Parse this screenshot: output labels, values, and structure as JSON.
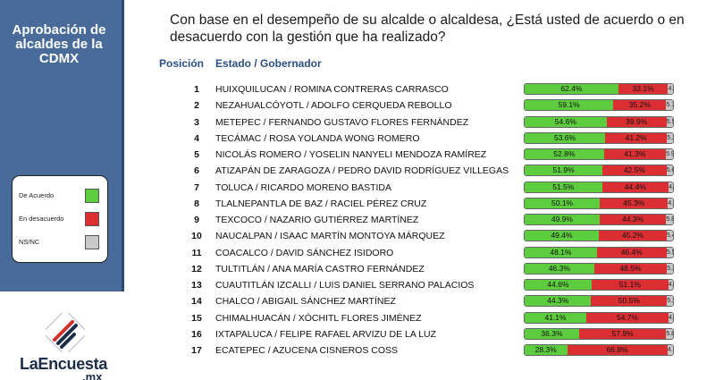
{
  "sidebar": {
    "title": "Aprobación de alcaldes de la CDMX",
    "legend": [
      {
        "label": "De Acuerdo",
        "color": "#5dcc3e"
      },
      {
        "label": "En desacuerdo",
        "color": "#dc2f34"
      },
      {
        "label": "NS/NC",
        "color": "#c8c8c8"
      }
    ]
  },
  "logo": {
    "brand": "LaEncuesta",
    "suffix": ".mx",
    "icon": "stripes-logo-icon"
  },
  "question": "Con base en el desempeño de su alcalde o alcaldesa, ¿Está usted de acuerdo o en desacuerdo con la gestión que ha realizado?",
  "headers": {
    "position": "Posición",
    "name": "Estado / Gobernador"
  },
  "chart_data": {
    "type": "bar",
    "stacked": true,
    "orientation": "horizontal",
    "series_colors": {
      "agree": "#5dcc3e",
      "disagree": "#dc2f34",
      "nsnc": "#c8c8c8"
    },
    "rows": [
      {
        "pos": "1",
        "name": "HUIXQUILUCAN / ROMINA CONTRERAS CARRASCO",
        "agree": 62.4,
        "disagree": 33.1,
        "nsnc": 4.5
      },
      {
        "pos": "2",
        "name": "NEZAHUALCÓYOTL / ADOLFO CERQUEDA REBOLLO",
        "agree": 59.1,
        "disagree": 35.2,
        "nsnc": 5.7
      },
      {
        "pos": "3",
        "name": "METEPEC / FERNANDO GUSTAVO FLORES FERNÁNDEZ",
        "agree": 54.6,
        "disagree": 39.9,
        "nsnc": 5.5
      },
      {
        "pos": "4",
        "name": "TECÁMAC / ROSA YOLANDA WONG ROMERO",
        "agree": 53.6,
        "disagree": 41.2,
        "nsnc": 5.2
      },
      {
        "pos": "5",
        "name": "NICOLÁS ROMERO / YOSELIN NANYELI MENDOZA RAMÍREZ",
        "agree": 52.8,
        "disagree": 41.3,
        "nsnc": 5.9
      },
      {
        "pos": "6",
        "name": "ATIZAPÁN DE ZARAGOZA / PEDRO DAVID RODRÍGUEZ VILLEGAS",
        "agree": 51.9,
        "disagree": 42.5,
        "nsnc": 5.6
      },
      {
        "pos": "7",
        "name": "TOLUCA / RICARDO MORENO BASTIDA",
        "agree": 51.5,
        "disagree": 44.4,
        "nsnc": 4.1
      },
      {
        "pos": "8",
        "name": "TLALNEPANTLA DE BAZ / RACIEL PÉREZ CRUZ",
        "agree": 50.1,
        "disagree": 45.3,
        "nsnc": 4.6
      },
      {
        "pos": "9",
        "name": "TEXCOCO / NAZARIO GUTIÉRREZ MARTÍNEZ",
        "agree": 49.9,
        "disagree": 44.3,
        "nsnc": 5.8
      },
      {
        "pos": "10",
        "name": "NAUCALPAN / ISAAC MARTÍN MONTOYA MÁRQUEZ",
        "agree": 49.4,
        "disagree": 45.2,
        "nsnc": 5.4
      },
      {
        "pos": "11",
        "name": "COACALCO / DAVID SÁNCHEZ ISIDORO",
        "agree": 48.1,
        "disagree": 46.4,
        "nsnc": 5.5
      },
      {
        "pos": "12",
        "name": "TULTITLÁN / ANA MARÍA CASTRO FERNÁNDEZ",
        "agree": 46.3,
        "disagree": 48.5,
        "nsnc": 5.2
      },
      {
        "pos": "13",
        "name": "CUAUTITLÁN IZCALLI / LUIS DANIEL SERRANO PALACIOS",
        "agree": 44.6,
        "disagree": 51.1,
        "nsnc": 4.3
      },
      {
        "pos": "14",
        "name": "CHALCO / ABIGAIL SÁNCHEZ MARTÍNEZ",
        "agree": 44.3,
        "disagree": 50.5,
        "nsnc": 5.2
      },
      {
        "pos": "15",
        "name": "CHIMALHUACÁN / XÓCHITL FLORES JIMÉNEZ",
        "agree": 41.1,
        "disagree": 54.7,
        "nsnc": 4.2
      },
      {
        "pos": "16",
        "name": "IXTAPALUCA / FELIPE RAFAEL ARVIZU DE LA LUZ",
        "agree": 36.3,
        "disagree": 57.9,
        "nsnc": 5.8
      },
      {
        "pos": "17",
        "name": "ECATEPEC / AZUCENA CISNEROS COSS",
        "agree": 28.3,
        "disagree": 66.8,
        "nsnc": 4.9
      }
    ]
  }
}
